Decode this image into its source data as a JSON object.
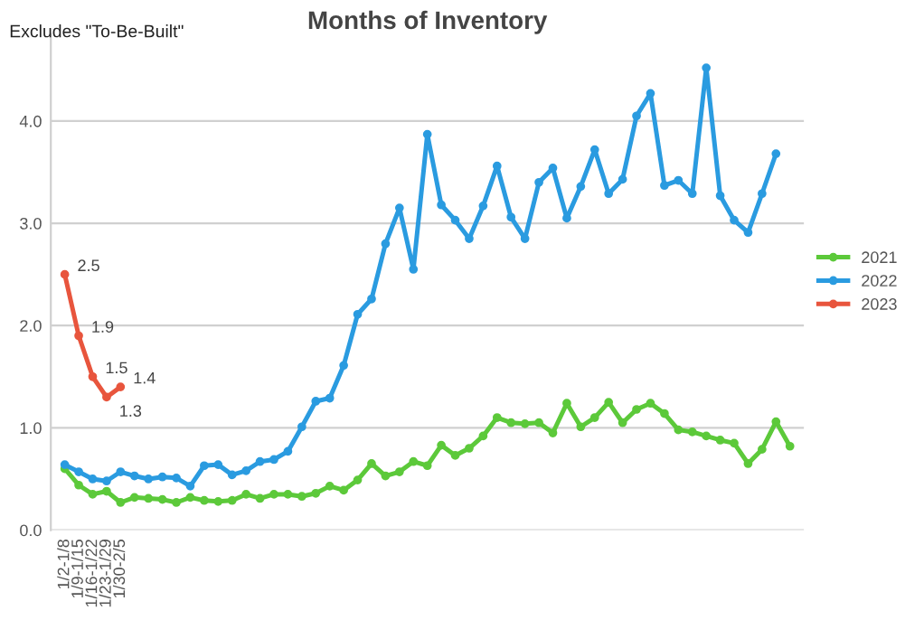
{
  "chart_data": {
    "type": "line",
    "title": "Months of Inventory",
    "annotations": [
      "Excludes \"To-Be-Built\""
    ],
    "categories": [
      "1/2-1/8",
      "1/9-1/15",
      "1/16-1/22",
      "1/23-1/29",
      "1/30-2/5",
      null,
      null,
      null,
      null,
      null,
      null,
      null,
      null,
      null,
      null,
      null,
      null,
      null,
      null,
      null,
      null,
      null,
      null,
      null,
      null,
      null,
      null,
      null,
      null,
      null,
      null,
      null,
      null,
      null,
      null,
      null,
      null,
      null,
      null,
      null,
      null,
      null,
      null,
      null,
      null,
      null,
      null,
      null,
      null,
      null,
      null,
      null,
      null
    ],
    "series": [
      {
        "name": "2021",
        "color": "#5cc93a",
        "values": [
          0.6,
          0.44,
          0.35,
          0.38,
          0.27,
          0.32,
          0.31,
          0.3,
          0.27,
          0.32,
          0.29,
          0.28,
          0.29,
          0.35,
          0.31,
          0.35,
          0.35,
          0.33,
          0.36,
          0.43,
          0.39,
          0.49,
          0.65,
          0.53,
          0.57,
          0.67,
          0.63,
          0.83,
          0.73,
          0.8,
          0.92,
          1.1,
          1.05,
          1.04,
          1.05,
          0.95,
          1.24,
          1.01,
          1.1,
          1.25,
          1.05,
          1.18,
          1.24,
          1.14,
          0.98,
          0.96,
          0.92,
          0.88,
          0.85,
          0.65,
          0.79,
          1.06,
          0.82
        ]
      },
      {
        "name": "2022",
        "color": "#2a9be0",
        "values": [
          0.64,
          0.57,
          0.5,
          0.48,
          0.57,
          0.53,
          0.5,
          0.52,
          0.51,
          0.43,
          0.63,
          0.64,
          0.54,
          0.58,
          0.67,
          0.69,
          0.77,
          1.01,
          1.26,
          1.29,
          1.61,
          2.11,
          2.26,
          2.8,
          3.15,
          2.55,
          3.87,
          3.18,
          3.03,
          2.85,
          3.17,
          3.56,
          3.06,
          2.85,
          3.4,
          3.54,
          3.05,
          3.36,
          3.72,
          3.29,
          3.43,
          4.05,
          4.27,
          3.37,
          3.42,
          3.29,
          4.52,
          3.27,
          3.03,
          2.91,
          3.29,
          3.68,
          null
        ]
      },
      {
        "name": "2023",
        "color": "#e8553d",
        "data_labels": true,
        "values": [
          2.5,
          1.9,
          1.5,
          1.3,
          1.4,
          null,
          null,
          null,
          null,
          null,
          null,
          null,
          null,
          null,
          null,
          null,
          null,
          null,
          null,
          null,
          null,
          null,
          null,
          null,
          null,
          null,
          null,
          null,
          null,
          null,
          null,
          null,
          null,
          null,
          null,
          null,
          null,
          null,
          null,
          null,
          null,
          null,
          null,
          null,
          null,
          null,
          null,
          null,
          null,
          null,
          null,
          null,
          null
        ]
      }
    ],
    "ylim": [
      0,
      4.85
    ],
    "yticks": [
      {
        "value": 0,
        "label": "0.0"
      },
      {
        "value": 1,
        "label": "1.0"
      },
      {
        "value": 2,
        "label": "2.0"
      },
      {
        "value": 3,
        "label": "3.0"
      },
      {
        "value": 4,
        "label": "4.0"
      }
    ],
    "grid": "y",
    "legend": "right",
    "marker": "circle",
    "line_style": "solid"
  }
}
